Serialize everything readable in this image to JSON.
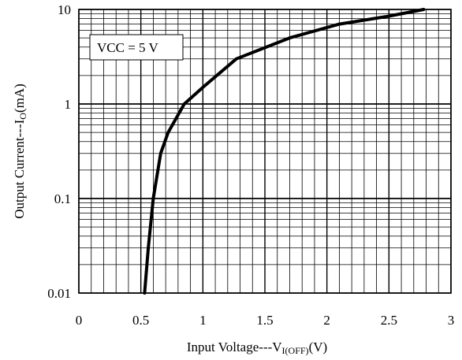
{
  "chart_data": {
    "type": "line",
    "title": "",
    "xlabel": {
      "prefix": "Input Voltage---V",
      "subscript": "I(OFF)",
      "suffix": "(V)"
    },
    "ylabel": {
      "prefix": "Output Current---I",
      "subscript": "O",
      "suffix": "(mA)"
    },
    "xlim": [
      0,
      3
    ],
    "ylim": [
      0.01,
      10
    ],
    "yscale": "log",
    "grid": true,
    "x_ticks": [
      "0",
      "0.5",
      "1",
      "1.5",
      "2",
      "2.5",
      "3"
    ],
    "y_ticks": [
      "0.01",
      "0.1",
      "1",
      "10"
    ],
    "annotation": "VCC = 5 V",
    "series": [
      {
        "x": [
          0.53,
          0.56,
          0.6,
          0.66,
          0.72,
          0.85,
          1.0,
          1.27,
          1.7,
          2.1,
          2.5,
          2.78
        ],
        "y": [
          0.01,
          0.03,
          0.1,
          0.3,
          0.5,
          1.0,
          1.5,
          3.0,
          5.0,
          7.0,
          8.5,
          10.0
        ]
      }
    ]
  }
}
